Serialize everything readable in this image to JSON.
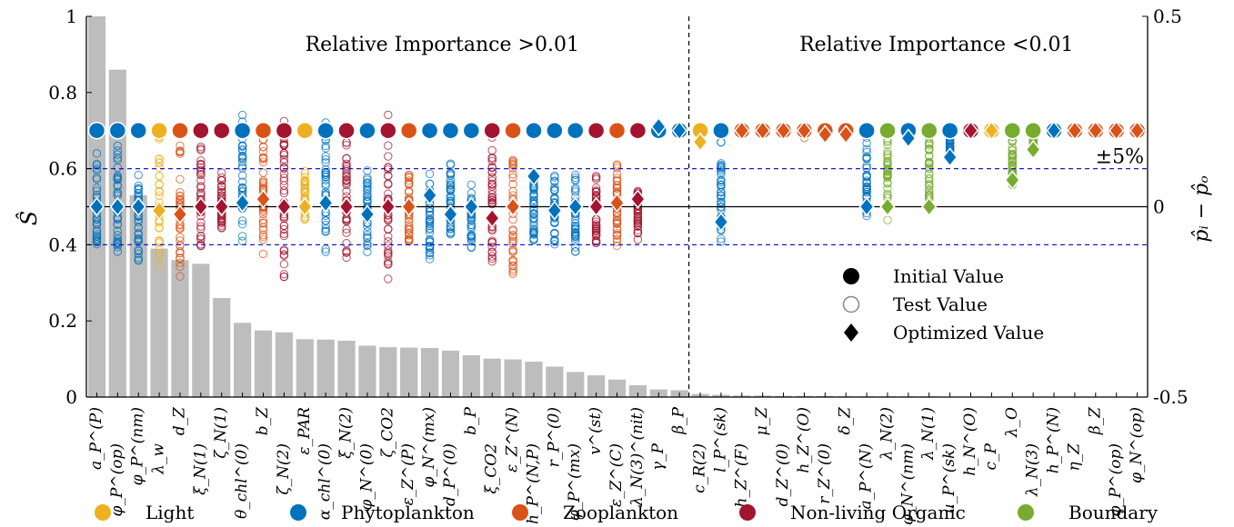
{
  "chart_data": {
    "type": "bar",
    "y_left": {
      "label": "Ŝ",
      "lim": [
        0,
        1
      ],
      "ticks": [
        "0",
        "0.2",
        "0.4",
        "0.6",
        "0.8",
        "1"
      ]
    },
    "y_right": {
      "label": "p̂ᵢ − p̂ₒ",
      "lim": [
        -0.5,
        0.5
      ],
      "ticks": [
        "-0.5",
        "0",
        "0.5"
      ]
    },
    "band_label": "±5%",
    "regions": [
      {
        "text": "Relative Importance >0.01"
      },
      {
        "text": "Relative Importance <0.01"
      }
    ],
    "group_colors": {
      "Light": "#EDB120",
      "Phytoplankton": "#0072BD",
      "Zooplankton": "#D95319",
      "Non-living Organic": "#A2142F",
      "Boundary": "#77AC30"
    },
    "bar_color": "#bdbdbd",
    "categories": [
      "a_P^(P)",
      "φ_P^(op)",
      "φ_P^(nm)",
      "λ_w",
      "d_Z",
      "ξ_N(1)",
      "ζ_N(1)",
      "θ_chl^(0)",
      "b_Z",
      "ζ_N(2)",
      "ε_PAR",
      "α_chl^(0)",
      "ξ_N(2)",
      "φ_N^(0)",
      "ζ_CO2",
      "ε_Z^(P)",
      "φ_N^(mx)",
      "d_P^(0)",
      "b_P",
      "ξ_CO2",
      "ε_Z^(N)",
      "h_P^(N,P)",
      "r_P^(0)",
      "φ_P^(mx)",
      "v^(st)",
      "ε_Z^(C)",
      "λ_N(3)^(nit)",
      "γ_P",
      "β_P",
      "c_R(2)",
      "l_P^(sk)",
      "h_Z^(F)",
      "μ_Z",
      "d_Z^(0)",
      "h_Z^(O)",
      "r_Z^(0)",
      "δ_Z",
      "a_P^(N)",
      "λ_N(2)",
      "φ_N^(nm)",
      "λ_N(1)",
      "u_P^(sk)",
      "h_N^(O)",
      "c_P",
      "λ_O",
      "λ_N(3)",
      "h_P^(N)",
      "η_Z",
      "β_Z",
      "φ_P^(op)",
      "φ_N^(op)"
    ],
    "groups": [
      "Phytoplankton",
      "Phytoplankton",
      "Phytoplankton",
      "Light",
      "Zooplankton",
      "Non-living Organic",
      "Non-living Organic",
      "Phytoplankton",
      "Zooplankton",
      "Non-living Organic",
      "Light",
      "Phytoplankton",
      "Non-living Organic",
      "Phytoplankton",
      "Non-living Organic",
      "Zooplankton",
      "Phytoplankton",
      "Phytoplankton",
      "Phytoplankton",
      "Non-living Organic",
      "Zooplankton",
      "Phytoplankton",
      "Phytoplankton",
      "Phytoplankton",
      "Non-living Organic",
      "Zooplankton",
      "Non-living Organic",
      "Phytoplankton",
      "Phytoplankton",
      "Light",
      "Phytoplankton",
      "Zooplankton",
      "Zooplankton",
      "Zooplankton",
      "Zooplankton",
      "Zooplankton",
      "Zooplankton",
      "Phytoplankton",
      "Boundary",
      "Phytoplankton",
      "Boundary",
      "Phytoplankton",
      "Non-living Organic",
      "Light",
      "Boundary",
      "Boundary",
      "Phytoplankton",
      "Zooplankton",
      "Zooplankton",
      "Zooplankton",
      "Zooplankton"
    ],
    "S_hat": [
      1.0,
      0.86,
      0.53,
      0.39,
      0.36,
      0.35,
      0.26,
      0.195,
      0.175,
      0.17,
      0.152,
      0.151,
      0.148,
      0.135,
      0.131,
      0.13,
      0.129,
      0.122,
      0.11,
      0.101,
      0.099,
      0.093,
      0.08,
      0.066,
      0.057,
      0.046,
      0.031,
      0.02,
      0.018,
      0.008,
      0.006,
      0.004,
      0.004,
      0.003,
      0.003,
      0.003,
      0.002,
      0.002,
      0.002,
      0.002,
      0.002,
      0.001,
      0.001,
      0.001,
      0.001,
      0.001,
      0.001,
      0.001,
      0.001,
      0.001,
      0.001
    ],
    "initial_value": 0.2,
    "optimized_delta": [
      0.0,
      0.0,
      0.0,
      -0.01,
      -0.02,
      0.0,
      0.0,
      0.01,
      0.02,
      0.0,
      0.0,
      0.01,
      0.0,
      -0.02,
      0.0,
      0.0,
      0.03,
      -0.02,
      0.0,
      -0.03,
      0.0,
      0.08,
      -0.01,
      0.0,
      0.0,
      0.01,
      0.02,
      0.21,
      0.2,
      0.17,
      -0.04,
      0.2,
      0.2,
      0.2,
      0.2,
      0.19,
      0.19,
      0.0,
      0.0,
      0.18,
      0.0,
      0.13,
      0.2,
      0.2,
      0.07,
      0.15,
      0.2,
      0.2,
      0.2,
      0.2,
      0.2
    ],
    "test_spread": [
      [
        -0.17,
        0.15
      ],
      [
        -0.12,
        0.17
      ],
      [
        -0.15,
        0.09
      ],
      [
        -0.18,
        0.22
      ],
      [
        -0.25,
        0.2
      ],
      [
        -0.11,
        0.16
      ],
      [
        -0.07,
        0.1
      ],
      [
        -0.1,
        0.25
      ],
      [
        -0.13,
        0.22
      ],
      [
        -0.25,
        0.25
      ],
      [
        -0.04,
        0.1
      ],
      [
        -0.12,
        0.25
      ],
      [
        -0.14,
        0.2
      ],
      [
        -0.12,
        0.1
      ],
      [
        -0.2,
        0.25
      ],
      [
        -0.11,
        0.1
      ],
      [
        -0.16,
        0.1
      ],
      [
        -0.12,
        0.13
      ],
      [
        -0.11,
        0.07
      ],
      [
        -0.15,
        0.2
      ],
      [
        -0.19,
        0.17
      ],
      [
        -0.09,
        0.08
      ],
      [
        -0.12,
        0.09
      ],
      [
        -0.13,
        0.1
      ],
      [
        -0.11,
        0.09
      ],
      [
        -0.11,
        0.12
      ],
      [
        -0.1,
        0.05
      ],
      [
        0.19,
        0.21
      ],
      [
        0.19,
        0.2
      ],
      [
        0.17,
        0.2
      ],
      [
        -0.1,
        0.18
      ],
      [
        0.19,
        0.2
      ],
      [
        0.19,
        0.2
      ],
      [
        0.19,
        0.2
      ],
      [
        0.18,
        0.2
      ],
      [
        0.18,
        0.2
      ],
      [
        0.18,
        0.2
      ],
      [
        -0.05,
        0.2
      ],
      [
        -0.05,
        0.2
      ],
      [
        0.17,
        0.2
      ],
      [
        -0.05,
        0.2
      ],
      [
        0.12,
        0.2
      ],
      [
        0.2,
        0.22
      ],
      [
        0.2,
        0.2
      ],
      [
        0.05,
        0.2
      ],
      [
        0.14,
        0.2
      ],
      [
        0.2,
        0.2
      ],
      [
        0.2,
        0.2
      ],
      [
        0.2,
        0.2
      ],
      [
        0.2,
        0.2
      ],
      [
        0.2,
        0.2
      ]
    ],
    "marker_legend": [
      "Initial Value",
      "Test Value",
      "Optimized Value"
    ],
    "group_legend": [
      "Light",
      "Phytoplankton",
      "Zooplankton",
      "Non-living Organic",
      "Boundary"
    ]
  }
}
